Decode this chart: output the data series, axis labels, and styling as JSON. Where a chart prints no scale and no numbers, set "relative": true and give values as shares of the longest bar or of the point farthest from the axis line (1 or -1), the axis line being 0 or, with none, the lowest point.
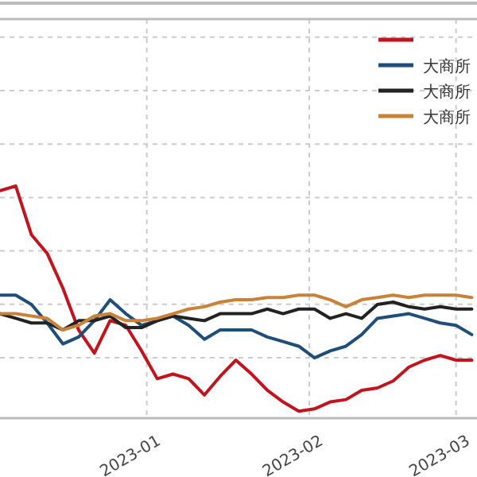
{
  "chart_data": {
    "type": "line",
    "relative": true,
    "grid": true,
    "legend": "top right",
    "x": [
      "2022-12-04",
      "2022-12-07",
      "2022-12-10",
      "2022-12-13",
      "2022-12-16",
      "2022-12-19",
      "2022-12-22",
      "2022-12-25",
      "2022-12-28",
      "2022-12-31",
      "2023-01-03",
      "2023-01-06",
      "2023-01-09",
      "2023-01-12",
      "2023-01-15",
      "2023-01-18",
      "2023-01-21",
      "2023-01-24",
      "2023-01-27",
      "2023-01-30",
      "2023-02-02",
      "2023-02-05",
      "2023-02-08",
      "2023-02-11",
      "2023-02-14",
      "2023-02-17",
      "2023-02-20",
      "2023-02-23",
      "2023-02-26",
      "2023-03-01",
      "2023-03-04"
    ],
    "xlim": [
      "2022-12-04",
      "2023-03-05"
    ],
    "xticks": [
      "2023-01",
      "2023-02",
      "2023-03"
    ],
    "series": [
      {
        "color": "#c0141e",
        "values": [
          0.98,
          1.0,
          0.79,
          0.71,
          0.56,
          0.38,
          0.28,
          0.42,
          0.4,
          0.29,
          0.17,
          0.19,
          0.17,
          0.1,
          0.18,
          0.25,
          0.19,
          0.12,
          0.07,
          0.03,
          0.04,
          0.07,
          0.08,
          0.12,
          0.13,
          0.16,
          0.22,
          0.25,
          0.27,
          0.25,
          0.25
        ]
      },
      {
        "name": "大商所",
        "color": "#1f4e79",
        "values": [
          0.53,
          0.53,
          0.49,
          0.41,
          0.32,
          0.35,
          0.42,
          0.51,
          0.45,
          0.4,
          0.42,
          0.44,
          0.4,
          0.34,
          0.38,
          0.38,
          0.38,
          0.35,
          0.33,
          0.31,
          0.26,
          0.29,
          0.31,
          0.36,
          0.43,
          0.44,
          0.45,
          0.43,
          0.41,
          0.4,
          0.36
        ]
      },
      {
        "name": "大商所",
        "color": "#222222",
        "values": [
          0.45,
          0.43,
          0.41,
          0.41,
          0.38,
          0.42,
          0.42,
          0.44,
          0.39,
          0.39,
          0.42,
          0.44,
          0.43,
          0.42,
          0.45,
          0.45,
          0.45,
          0.47,
          0.45,
          0.47,
          0.47,
          0.43,
          0.45,
          0.43,
          0.49,
          0.5,
          0.48,
          0.47,
          0.48,
          0.47,
          0.47
        ]
      },
      {
        "name": "大商所",
        "color": "#c8823a",
        "values": [
          0.45,
          0.45,
          0.44,
          0.43,
          0.38,
          0.4,
          0.44,
          0.45,
          0.42,
          0.42,
          0.43,
          0.45,
          0.47,
          0.48,
          0.5,
          0.51,
          0.51,
          0.52,
          0.52,
          0.53,
          0.53,
          0.51,
          0.48,
          0.51,
          0.52,
          0.53,
          0.52,
          0.53,
          0.53,
          0.53,
          0.52
        ]
      }
    ]
  }
}
